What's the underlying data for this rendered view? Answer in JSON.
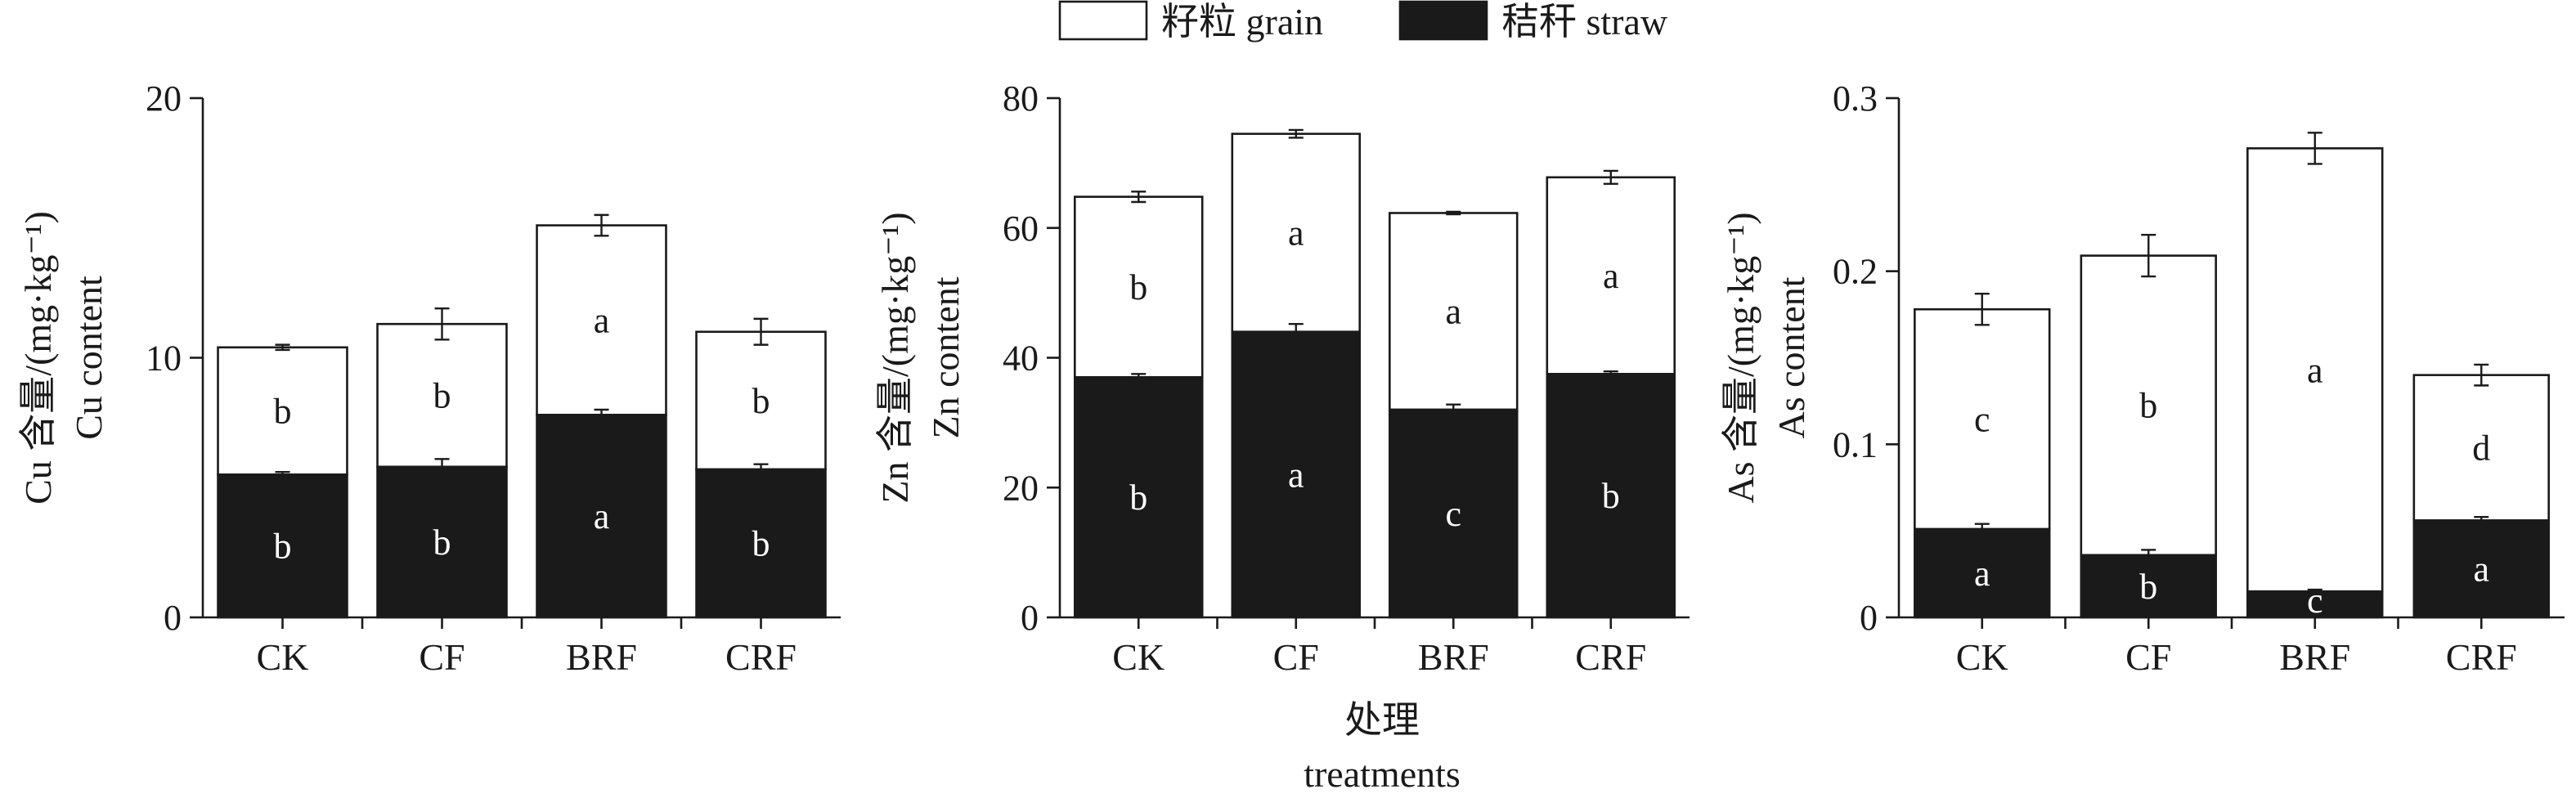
{
  "legend": {
    "grain_label": "籽粒 grain",
    "straw_label": "秸秆 straw",
    "grain_color": "#ffffff",
    "straw_color": "#1a1a1a"
  },
  "x_title": {
    "zh": "处理",
    "en": "treatments"
  },
  "chart_data": [
    {
      "type": "bar",
      "stacked": true,
      "ylabel_zh": "Cu 含量/(mg·kg⁻¹)",
      "ylabel_en": "Cu content",
      "ylim": [
        0,
        20
      ],
      "yticks": [
        0,
        10,
        20
      ],
      "ytick_labels": [
        "0",
        "10",
        "20"
      ],
      "categories": [
        "CK",
        "CF",
        "BRF",
        "CRF"
      ],
      "series": [
        {
          "name": "秸秆 straw",
          "values": [
            5.5,
            5.8,
            7.8,
            5.7
          ],
          "errors": [
            0.1,
            0.3,
            0.2,
            0.2
          ],
          "letters": [
            "b",
            "b",
            "a",
            "b"
          ]
        },
        {
          "name": "籽粒 grain",
          "values": [
            4.9,
            5.5,
            7.3,
            5.3
          ],
          "errors": [
            0.1,
            0.6,
            0.4,
            0.5
          ],
          "letters": [
            "b",
            "b",
            "a",
            "b"
          ]
        }
      ]
    },
    {
      "type": "bar",
      "stacked": true,
      "ylabel_zh": "Zn 含量/(mg·kg⁻¹)",
      "ylabel_en": "Zn content",
      "ylim": [
        0,
        80
      ],
      "yticks": [
        0,
        20,
        40,
        60,
        80
      ],
      "ytick_labels": [
        "0",
        "20",
        "40",
        "60",
        "80"
      ],
      "categories": [
        "CK",
        "CF",
        "BRF",
        "CRF"
      ],
      "series": [
        {
          "name": "秸秆 straw",
          "values": [
            37.0,
            44.0,
            32.0,
            37.5
          ],
          "errors": [
            0.5,
            1.2,
            0.8,
            0.4
          ],
          "letters": [
            "b",
            "a",
            "c",
            "b"
          ]
        },
        {
          "name": "籽粒 grain",
          "values": [
            27.8,
            30.5,
            30.3,
            30.3
          ],
          "errors": [
            0.8,
            0.6,
            0.2,
            1.0
          ],
          "letters": [
            "b",
            "a",
            "a",
            "a"
          ]
        }
      ]
    },
    {
      "type": "bar",
      "stacked": true,
      "ylabel_zh": "As 含量/(mg·kg⁻¹)",
      "ylabel_en": "As content",
      "ylim": [
        0,
        0.3
      ],
      "yticks": [
        0,
        0.1,
        0.2,
        0.3
      ],
      "ytick_labels": [
        "0",
        "0.1",
        "0.2",
        "0.3"
      ],
      "categories": [
        "CK",
        "CF",
        "BRF",
        "CRF"
      ],
      "series": [
        {
          "name": "秸秆 straw",
          "values": [
            0.051,
            0.036,
            0.015,
            0.056
          ],
          "errors": [
            0.003,
            0.003,
            0.001,
            0.002
          ],
          "letters": [
            "a",
            "b",
            "c",
            "a"
          ]
        },
        {
          "name": "籽粒 grain",
          "values": [
            0.127,
            0.173,
            0.256,
            0.084
          ],
          "errors": [
            0.009,
            0.012,
            0.009,
            0.006
          ],
          "letters": [
            "c",
            "b",
            "a",
            "d"
          ]
        }
      ]
    }
  ]
}
